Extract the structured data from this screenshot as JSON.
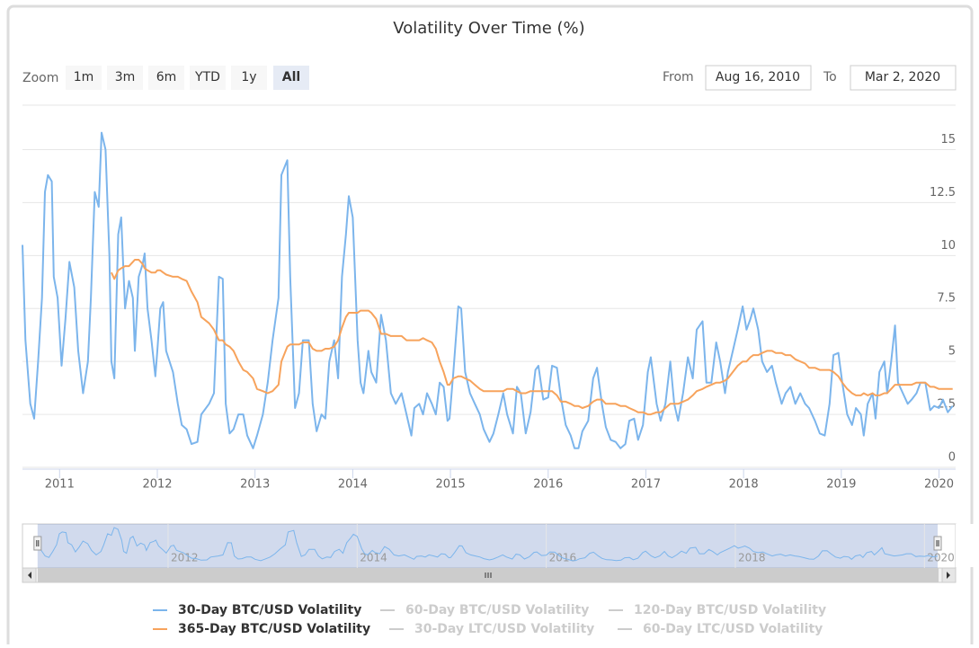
{
  "chart_data": {
    "type": "line",
    "title": "Volatility Over Time (%)",
    "range_selector": {
      "label": "Zoom",
      "buttons": [
        "1m",
        "3m",
        "6m",
        "YTD",
        "1y",
        "All"
      ],
      "selected": 5,
      "from_label": "From",
      "from": "Aug 16, 2010",
      "to_label": "To",
      "to": "Mar 2, 2020"
    },
    "x": [
      2010.62,
      2010.65,
      2010.7,
      2010.74,
      2010.78,
      2010.82,
      2010.85,
      2010.88,
      2010.92,
      2010.94,
      2010.98,
      2011.02,
      2011.06,
      2011.1,
      2011.15,
      2011.19,
      2011.24,
      2011.29,
      2011.32,
      2011.36,
      2011.4,
      2011.43,
      2011.47,
      2011.51,
      2011.53,
      2011.56,
      2011.6,
      2011.63,
      2011.67,
      2011.71,
      2011.75,
      2011.77,
      2011.81,
      2011.85,
      2011.87,
      2011.9,
      2011.94,
      2011.98,
      2012.0,
      2012.03,
      2012.06,
      2012.09,
      2012.16,
      2012.21,
      2012.25,
      2012.3,
      2012.35,
      2012.41,
      2012.45,
      2012.53,
      2012.58,
      2012.63,
      2012.67,
      2012.7,
      2012.74,
      2012.78,
      2012.83,
      2012.88,
      2012.92,
      2012.98,
      2013.02,
      2013.08,
      2013.13,
      2013.18,
      2013.24,
      2013.27,
      2013.33,
      2013.36,
      2013.41,
      2013.45,
      2013.49,
      2013.55,
      2013.59,
      2013.63,
      2013.68,
      2013.72,
      2013.76,
      2013.81,
      2013.85,
      2013.89,
      2013.93,
      2013.96,
      2014.0,
      2014.05,
      2014.08,
      2014.11,
      2014.16,
      2014.19,
      2014.24,
      2014.29,
      2014.34,
      2014.39,
      2014.44,
      2014.5,
      2014.55,
      2014.6,
      2014.63,
      2014.68,
      2014.72,
      2014.76,
      2014.81,
      2014.85,
      2014.89,
      2014.93,
      2014.97,
      2014.99,
      2015.03,
      2015.08,
      2015.11,
      2015.15,
      2015.2,
      2015.25,
      2015.3,
      2015.34,
      2015.4,
      2015.44,
      2015.49,
      2015.54,
      2015.58,
      2015.64,
      2015.68,
      2015.72,
      2015.77,
      2015.82,
      2015.87,
      2015.9,
      2015.95,
      2016.0,
      2016.04,
      2016.09,
      2016.13,
      2016.18,
      2016.23,
      2016.27,
      2016.31,
      2016.35,
      2016.41,
      2016.46,
      2016.5,
      2016.55,
      2016.59,
      2016.64,
      2016.69,
      2016.74,
      2016.79,
      2016.83,
      2016.88,
      2016.92,
      2016.97,
      2017.02,
      2017.05,
      2017.11,
      2017.15,
      2017.2,
      2017.25,
      2017.29,
      2017.33,
      2017.38,
      2017.43,
      2017.48,
      2017.52,
      2017.58,
      2017.62,
      2017.67,
      2017.72,
      2017.76,
      2017.81,
      2017.84,
      2017.89,
      2017.94,
      2017.99,
      2018.03,
      2018.07,
      2018.1,
      2018.15,
      2018.19,
      2018.24,
      2018.29,
      2018.33,
      2018.39,
      2018.43,
      2018.48,
      2018.53,
      2018.58,
      2018.63,
      2018.67,
      2018.73,
      2018.78,
      2018.83,
      2018.88,
      2018.92,
      2018.97,
      2019.01,
      2019.06,
      2019.11,
      2019.15,
      2019.2,
      2019.23,
      2019.27,
      2019.32,
      2019.35,
      2019.39,
      2019.44,
      2019.47,
      2019.51,
      2019.55,
      2019.58,
      2019.63,
      2019.68,
      2019.72,
      2019.77,
      2019.81,
      2019.86,
      2019.91,
      2019.95,
      2020.0,
      2020.04,
      2020.09,
      2020.14
    ],
    "series": [
      {
        "name": "30-Day BTC/USD Volatility",
        "color": "#7cb5ec",
        "values": [
          10.5,
          6,
          3,
          2.3,
          5,
          8,
          13,
          13.8,
          13.5,
          9,
          8,
          4.8,
          7,
          9.7,
          8.5,
          5.5,
          3.5,
          5,
          8,
          13,
          12.3,
          15.8,
          15,
          10,
          5,
          4.2,
          11,
          11.8,
          7.5,
          8.8,
          8,
          5.5,
          9,
          9.6,
          10.1,
          7.5,
          6,
          4.3,
          5.5,
          7.5,
          7.8,
          5.5,
          4.5,
          3,
          2,
          1.8,
          1.1,
          1.2,
          2.5,
          3,
          3.5,
          9,
          8.9,
          3,
          1.6,
          1.8,
          2.5,
          2.5,
          1.5,
          0.9,
          1.5,
          2.5,
          4,
          6,
          8,
          13.8,
          14.5,
          9,
          2.8,
          3.5,
          6,
          6,
          3,
          1.7,
          2.5,
          2.3,
          5,
          6,
          4.2,
          9,
          11,
          12.8,
          11.8,
          6,
          4,
          3.5,
          5.5,
          4.5,
          4,
          7.2,
          6,
          3.5,
          3,
          3.5,
          2.5,
          1.5,
          2.8,
          3,
          2.5,
          3.5,
          3,
          2.5,
          4,
          3.8,
          2.2,
          2.3,
          4.5,
          7.6,
          7.5,
          4.5,
          3.5,
          3,
          2.5,
          1.8,
          1.2,
          1.6,
          2.5,
          3.5,
          2.5,
          1.6,
          3.8,
          3.5,
          1.6,
          2.6,
          4.6,
          4.8,
          3.2,
          3.3,
          4.8,
          4.7,
          3.3,
          2,
          1.5,
          0.9,
          0.9,
          1.7,
          2.2,
          4.2,
          4.7,
          3,
          1.9,
          1.3,
          1.2,
          0.9,
          1.1,
          2.2,
          2.3,
          1.3,
          2,
          4.5,
          5.2,
          3,
          2.2,
          3,
          5,
          3,
          2.2,
          3.5,
          5.2,
          4.2,
          6.5,
          6.9,
          4,
          4,
          5.9,
          5,
          3.5,
          4.5,
          5.5,
          6.5,
          7.6,
          6.5,
          7,
          7.5,
          6.5,
          5,
          4.5,
          4.8,
          4,
          3,
          3.5,
          3.8,
          3,
          3.5,
          3,
          2.8,
          2.2,
          1.6,
          1.5,
          3,
          5.3,
          5.4,
          4,
          2.5,
          2,
          2.8,
          2.5,
          1.5,
          3,
          3.5,
          2.3,
          4.5,
          5,
          3.5,
          5,
          6.7,
          4,
          3.5,
          3,
          3.2,
          3.5,
          4,
          4,
          2.7,
          2.9,
          2.8,
          3.2,
          2.6,
          2.9
        ]
      },
      {
        "name": "365-Day BTC/USD Volatility",
        "color": "#f7a35c",
        "values": [
          null,
          null,
          null,
          null,
          null,
          null,
          null,
          null,
          null,
          null,
          null,
          null,
          null,
          null,
          null,
          null,
          null,
          null,
          null,
          null,
          null,
          null,
          null,
          null,
          9.2,
          8.9,
          9.3,
          9.4,
          9.5,
          9.5,
          9.7,
          9.8,
          9.8,
          9.6,
          9.4,
          9.3,
          9.2,
          9.2,
          9.3,
          9.3,
          9.2,
          9.1,
          9.0,
          9.0,
          8.9,
          8.8,
          8.3,
          7.8,
          7.1,
          6.8,
          6.5,
          6.0,
          6.0,
          5.8,
          5.7,
          5.5,
          5.0,
          4.6,
          4.5,
          4.2,
          3.7,
          3.6,
          3.5,
          3.6,
          3.9,
          5.0,
          5.7,
          5.8,
          5.8,
          5.8,
          5.9,
          5.9,
          5.6,
          5.5,
          5.5,
          5.6,
          5.6,
          5.7,
          6.0,
          6.6,
          7.1,
          7.3,
          7.3,
          7.3,
          7.4,
          7.4,
          7.4,
          7.3,
          7.0,
          6.3,
          6.3,
          6.2,
          6.2,
          6.2,
          6.0,
          6.0,
          6.0,
          6.0,
          6.1,
          6.0,
          5.9,
          5.6,
          5.0,
          4.5,
          3.9,
          3.9,
          4.2,
          4.3,
          4.3,
          4.2,
          4.1,
          3.9,
          3.7,
          3.6,
          3.6,
          3.6,
          3.6,
          3.6,
          3.7,
          3.7,
          3.6,
          3.5,
          3.5,
          3.6,
          3.6,
          3.6,
          3.6,
          3.6,
          3.6,
          3.4,
          3.1,
          3.1,
          3.0,
          2.9,
          2.9,
          2.8,
          2.9,
          3.1,
          3.2,
          3.2,
          3.0,
          3.0,
          3.0,
          2.9,
          2.9,
          2.8,
          2.7,
          2.6,
          2.6,
          2.5,
          2.5,
          2.6,
          2.6,
          2.8,
          3.0,
          3.0,
          3.0,
          3.1,
          3.2,
          3.4,
          3.6,
          3.7,
          3.8,
          3.9,
          4.0,
          4.0,
          4.1,
          4.2,
          4.5,
          4.8,
          5.0,
          5.0,
          5.2,
          5.3,
          5.3,
          5.4,
          5.5,
          5.5,
          5.4,
          5.4,
          5.3,
          5.3,
          5.1,
          5.0,
          4.9,
          4.7,
          4.7,
          4.6,
          4.6,
          4.6,
          4.5,
          4.3,
          4.0,
          3.7,
          3.5,
          3.4,
          3.4,
          3.5,
          3.4,
          3.5,
          3.4,
          3.4,
          3.5,
          3.5,
          3.7,
          3.9,
          3.9,
          3.9,
          3.9,
          3.9,
          4.0,
          4.0,
          4.0,
          3.8,
          3.8,
          3.7,
          3.7,
          3.7,
          3.7
        ]
      }
    ],
    "hidden_series": [
      {
        "name": "60-Day BTC/USD Volatility",
        "color": "#cccccc"
      },
      {
        "name": "120-Day BTC/USD Volatility",
        "color": "#cccccc"
      },
      {
        "name": "30-Day LTC/USD Volatility",
        "color": "#cccccc"
      },
      {
        "name": "60-Day LTC/USD Volatility",
        "color": "#cccccc"
      }
    ],
    "xlim": [
      2010.62,
      2020.17
    ],
    "xticks": [
      2011,
      2012,
      2013,
      2014,
      2015,
      2016,
      2017,
      2018,
      2019,
      2020
    ],
    "ylim": [
      0,
      17.1
    ],
    "yticks": [
      0,
      2.5,
      5,
      7.5,
      10,
      12.5,
      15
    ],
    "grid": true,
    "navigator": {
      "xlim": [
        2010.46,
        2020.33
      ],
      "ylim": [
        0,
        17
      ],
      "xticks": [
        2012,
        2014,
        2016,
        2018,
        2020
      ]
    }
  }
}
